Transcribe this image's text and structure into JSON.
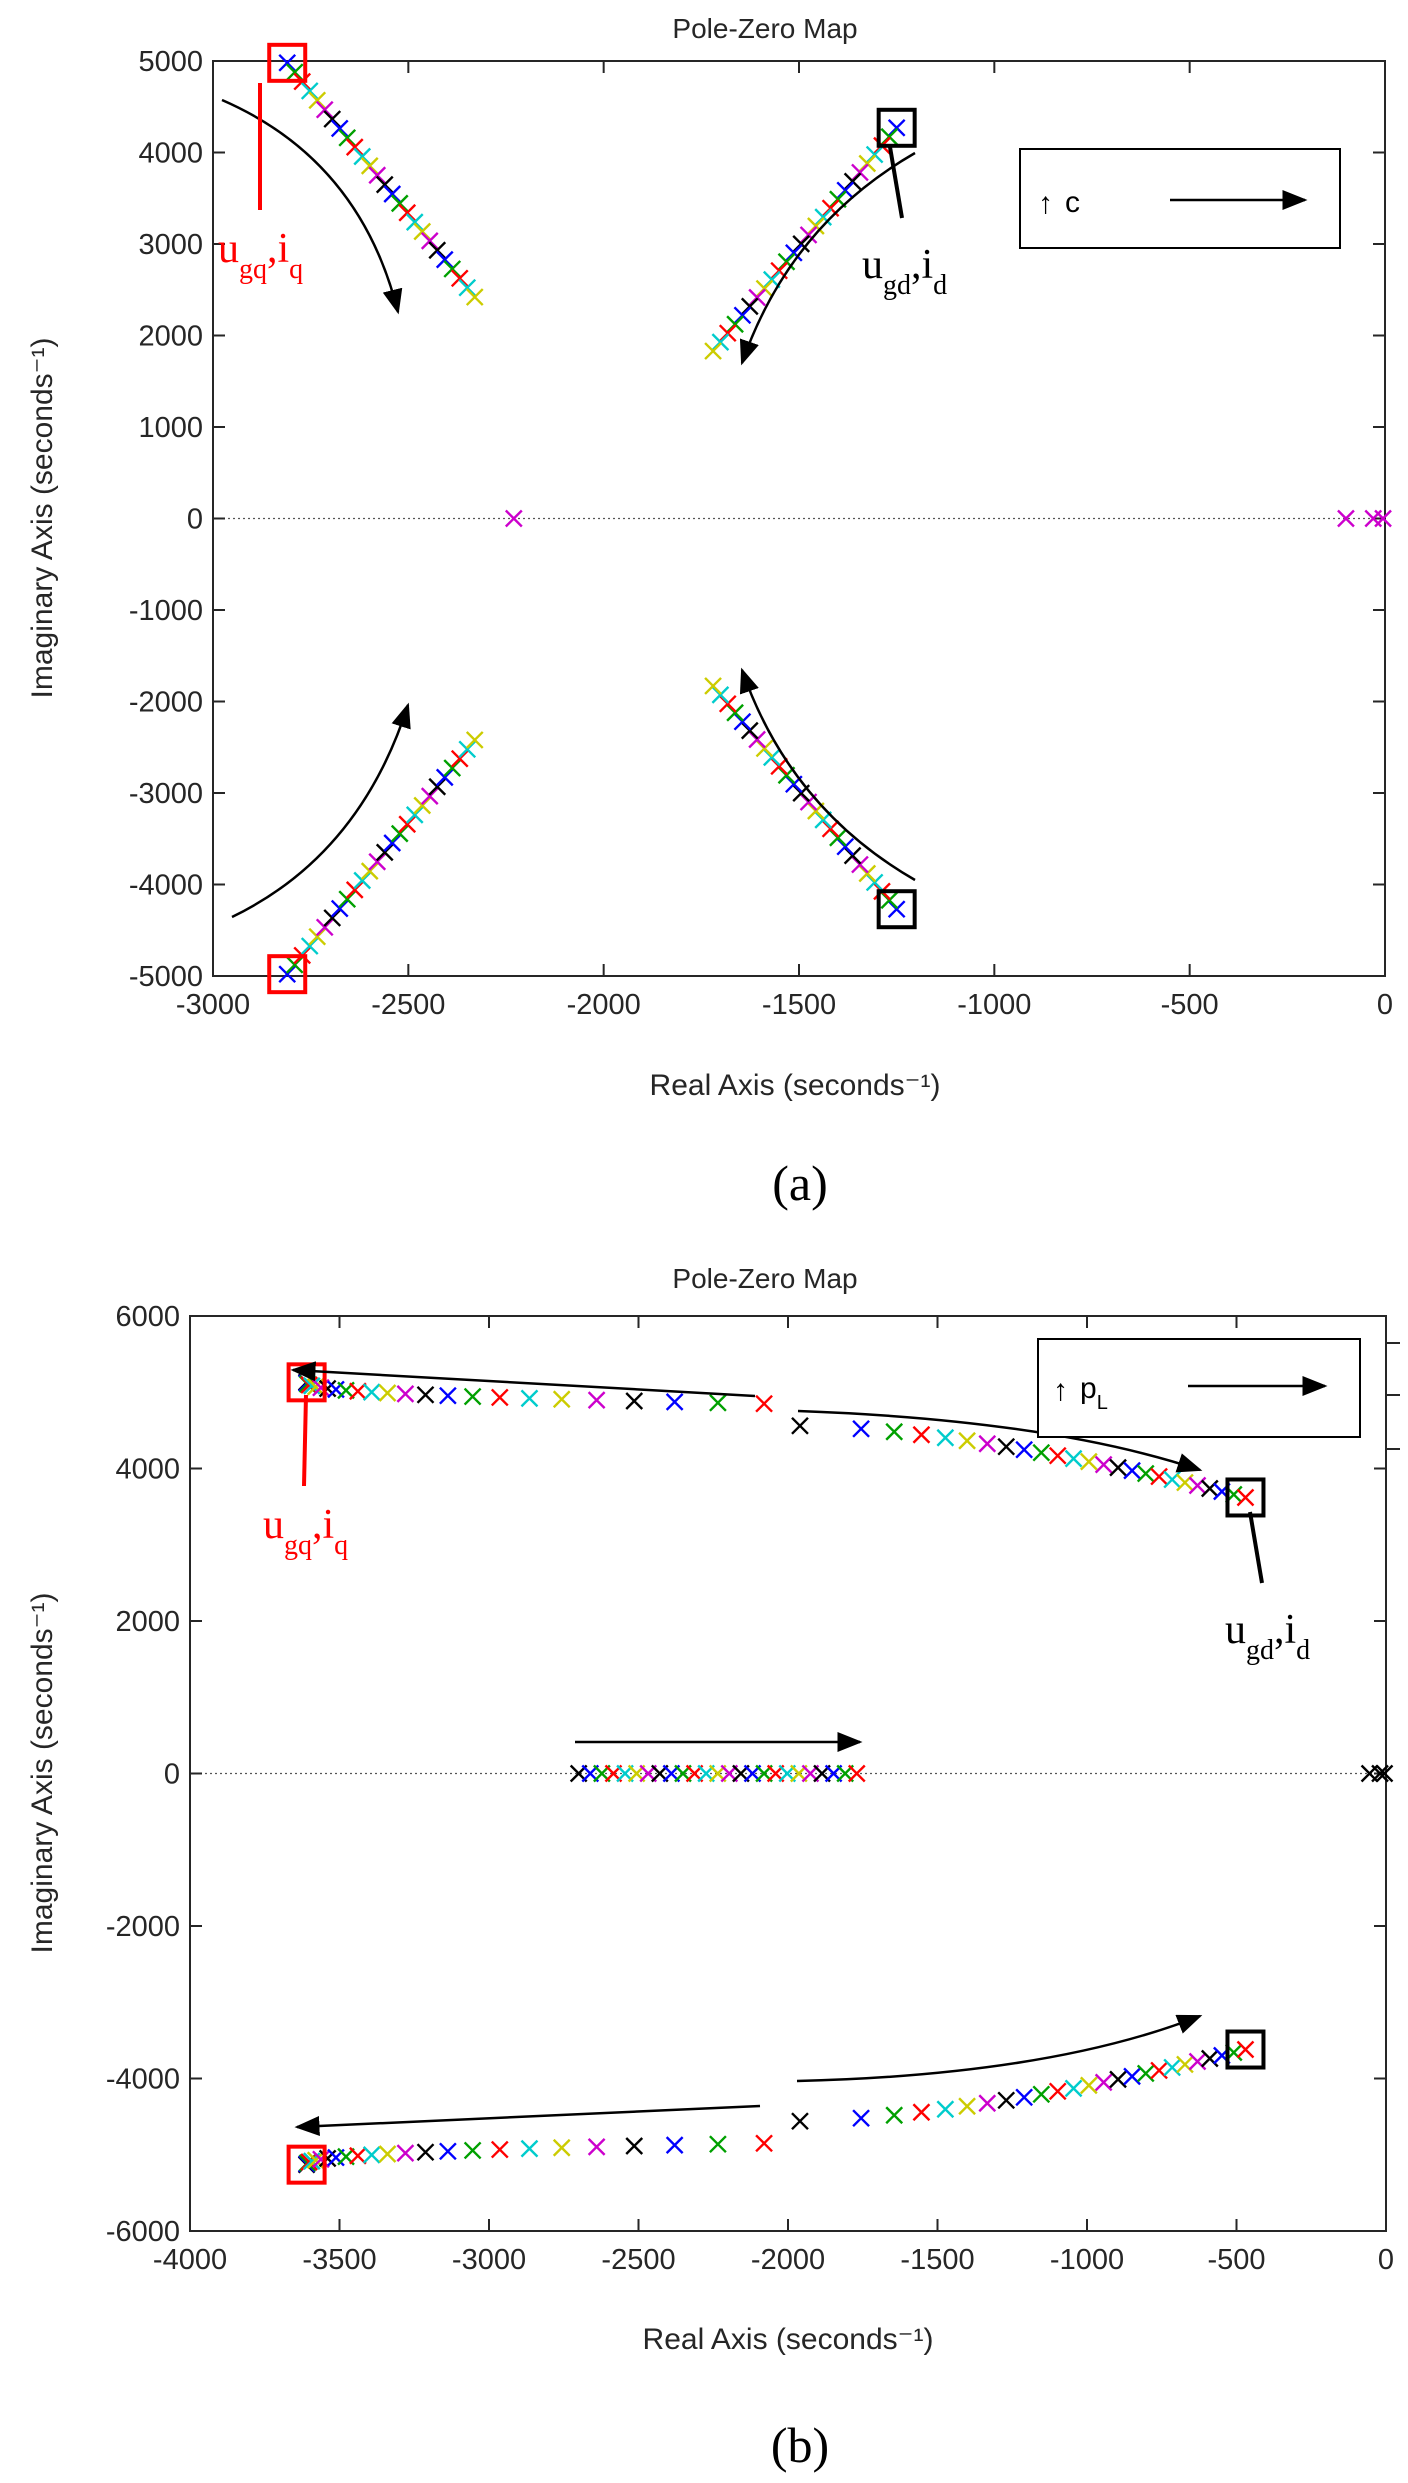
{
  "chart_data": [
    {
      "type": "scatter",
      "panel_label": "(a)",
      "title": "Pole-Zero Map",
      "xlabel": "Real Axis (seconds⁻¹)",
      "ylabel": "Imaginary Axis (seconds⁻¹)",
      "xlim": [
        -3000,
        0
      ],
      "ylim": [
        -5000,
        5000
      ],
      "xticks": [
        -3000,
        -2500,
        -2000,
        -1500,
        -1000,
        -500,
        0
      ],
      "xtick_labels": [
        "-3000",
        "-2500",
        "-2000",
        "-1500",
        "-1000",
        "-500",
        "0"
      ],
      "yticks": [
        -5000,
        -4000,
        -3000,
        -2000,
        -1000,
        0,
        1000,
        2000,
        3000,
        4000,
        5000
      ],
      "ytick_labels": [
        "-5000",
        "-4000",
        "-3000",
        "-2000",
        "-1000",
        "0",
        "1000",
        "2000",
        "3000",
        "4000",
        "5000"
      ],
      "legend": {
        "symbol": "↑",
        "text": "c",
        "placement": "top-right"
      },
      "color_cycle": [
        "#0000ff",
        "#00a000",
        "#ff0000",
        "#00cccc",
        "#cccc00",
        "#cc00cc",
        "#000000"
      ],
      "branches": [
        {
          "name": "ugq-branch-upper",
          "start": [
            -2810,
            4980
          ],
          "end": [
            -2330,
            2420
          ],
          "n": 26
        },
        {
          "name": "ugq-branch-lower",
          "start": [
            -2810,
            -4980
          ],
          "end": [
            -2330,
            -2420
          ],
          "n": 26
        },
        {
          "name": "ugd-branch-upper",
          "start": [
            -1250,
            4270
          ],
          "end": [
            -1720,
            1830
          ],
          "n": 26
        },
        {
          "name": "ugd-branch-lower",
          "start": [
            -1250,
            -4270
          ],
          "end": [
            -1720,
            -1830
          ],
          "n": 26
        }
      ],
      "real_poles": [
        {
          "x": -2230,
          "y": 0,
          "color": "#cc00cc"
        },
        {
          "x": -100,
          "y": 0,
          "color": "#cc00cc"
        },
        {
          "x": -30,
          "y": 0,
          "color": "#cc00cc"
        },
        {
          "x": -5,
          "y": 0,
          "color": "#cc00cc"
        }
      ],
      "highlight_boxes": [
        {
          "name": "ugq-box-upper",
          "x": -2810,
          "y": 4980,
          "color": "#ff0000"
        },
        {
          "name": "ugq-box-lower",
          "x": -2810,
          "y": -4980,
          "color": "#ff0000"
        },
        {
          "name": "ugd-box-upper",
          "x": -1250,
          "y": 4270,
          "color": "#000000"
        },
        {
          "name": "ugd-box-lower",
          "x": -1250,
          "y": -4270,
          "color": "#000000"
        }
      ],
      "annotations": [
        {
          "name": "ugq-annotation",
          "base": "u",
          "sub1": "gq",
          "sep": ",i",
          "sub2": "q",
          "color": "#ff0000"
        },
        {
          "name": "ugd-annotation",
          "base": "u",
          "sub1": "gd",
          "sep": ",i",
          "sub2": "d",
          "color": "#000000"
        }
      ]
    },
    {
      "type": "scatter",
      "panel_label": "(b)",
      "title": "Pole-Zero Map",
      "xlabel": "Real Axis (seconds⁻¹)",
      "ylabel": "Imaginary Axis (seconds⁻¹)",
      "xlim": [
        -4000,
        0
      ],
      "ylim": [
        -6000,
        6000
      ],
      "xticks": [
        -4000,
        -3500,
        -3000,
        -2500,
        -2000,
        -1500,
        -1000,
        -500,
        0
      ],
      "xtick_labels": [
        "-4000",
        "-3500",
        "-3000",
        "-2500",
        "-2000",
        "-1500",
        "-1000",
        "-500",
        "0"
      ],
      "yticks": [
        -6000,
        -4000,
        -2000,
        0,
        2000,
        4000,
        6000
      ],
      "ytick_labels": [
        "-6000",
        "-4000",
        "-2000",
        "0",
        "2000",
        "4000",
        "6000"
      ],
      "legend": {
        "symbol": "↑",
        "text": "p",
        "text_sub": "L",
        "placement": "top-right"
      },
      "color_cycle": [
        "#000000",
        "#0000ff",
        "#00a000",
        "#ff0000",
        "#00cccc",
        "#cccc00",
        "#cc00cc"
      ],
      "branches": [
        {
          "name": "ugq-branch-upper",
          "start": [
            -3610,
            5130
          ],
          "end": [
            -2080,
            4850
          ],
          "n": 25,
          "curve": 0.4
        },
        {
          "name": "ugq-branch-lower",
          "start": [
            -3610,
            -5130
          ],
          "end": [
            -2080,
            -4850
          ],
          "n": 25,
          "curve": 0.4
        },
        {
          "name": "ugd-branch-upper",
          "start": [
            -1960,
            4560
          ],
          "end": [
            -470,
            3620
          ],
          "n": 25,
          "curve": 1.6
        },
        {
          "name": "ugd-branch-lower",
          "start": [
            -1960,
            -4560
          ],
          "end": [
            -470,
            -3620
          ],
          "n": 25,
          "curve": 1.6
        },
        {
          "name": "real-branch",
          "start": [
            -2700,
            0
          ],
          "end": [
            -1770,
            0
          ],
          "n": 25,
          "curve": 1
        }
      ],
      "real_poles": [
        {
          "x": -55,
          "y": 0,
          "color": "#000000"
        },
        {
          "x": -20,
          "y": 0,
          "color": "#000000"
        },
        {
          "x": -5,
          "y": 0,
          "color": "#000000"
        }
      ],
      "highlight_boxes": [
        {
          "name": "ugq-box-upper",
          "x": -3610,
          "y": 5130,
          "color": "#ff0000"
        },
        {
          "name": "ugq-box-lower",
          "x": -3610,
          "y": -5130,
          "color": "#ff0000"
        },
        {
          "name": "ugd-box-upper",
          "x": -470,
          "y": 3620,
          "color": "#000000"
        },
        {
          "name": "ugd-box-lower",
          "x": -470,
          "y": -3620,
          "color": "#000000"
        }
      ],
      "annotations": [
        {
          "name": "ugq-annotation",
          "base": "u",
          "sub1": "gq",
          "sep": ",i",
          "sub2": "q",
          "color": "#ff0000"
        },
        {
          "name": "ugd-annotation",
          "base": "u",
          "sub1": "gd",
          "sep": ",i",
          "sub2": "d",
          "color": "#000000"
        }
      ]
    }
  ]
}
